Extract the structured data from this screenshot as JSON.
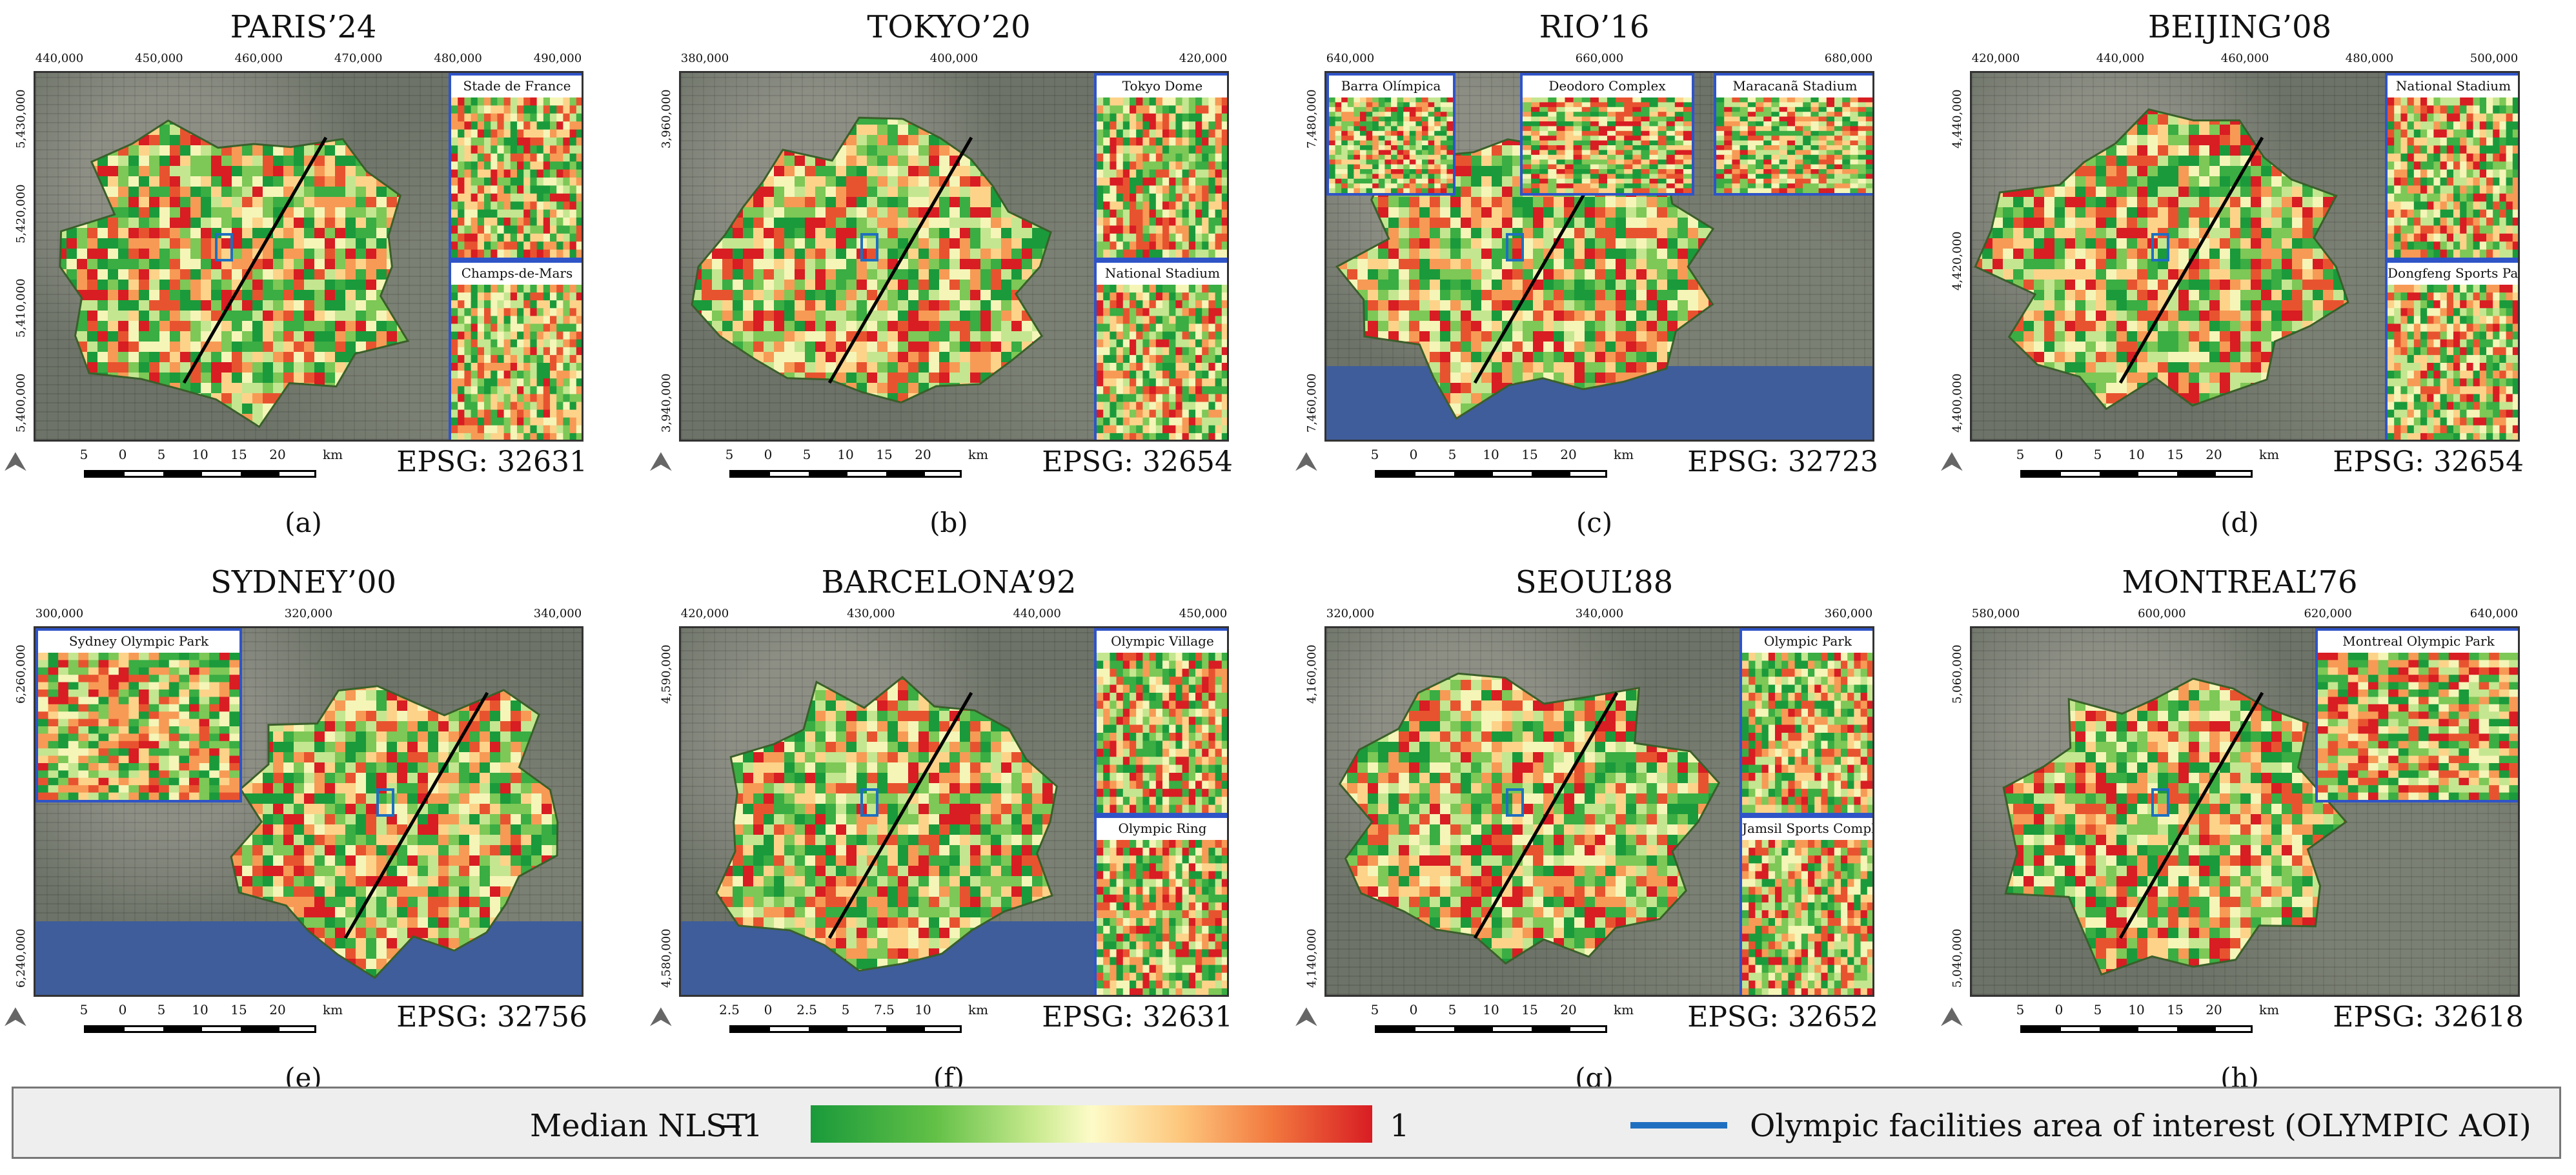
{
  "panels": [
    {
      "title": "PARIS’24",
      "sub": "(a)",
      "epsg": "EPSG: 32631",
      "top_ticks": [
        "440,000",
        "450,000",
        "460,000",
        "470,000",
        "480,000",
        "490,000"
      ],
      "left_ticks": [
        "5,430,000",
        "5,420,000",
        "5,410,000",
        "5,400,000"
      ],
      "scale": [
        "5",
        "0",
        "5",
        "10",
        "15",
        "20",
        "km"
      ],
      "insets": [
        "Stade de France",
        "Champs-de-Mars"
      ]
    },
    {
      "title": "TOKYO’20",
      "sub": "(b)",
      "epsg": "EPSG: 32654",
      "top_ticks": [
        "380,000",
        "400,000",
        "420,000"
      ],
      "left_ticks": [
        "3,960,000",
        "3,940,000"
      ],
      "scale": [
        "5",
        "0",
        "5",
        "10",
        "15",
        "20",
        "km"
      ],
      "insets": [
        "Tokyo Dome",
        "National Stadium"
      ]
    },
    {
      "title": "RIO’16",
      "sub": "(c)",
      "epsg": "EPSG: 32723",
      "top_ticks": [
        "640,000",
        "660,000",
        "680,000"
      ],
      "left_ticks": [
        "7,480,000",
        "7,460,000"
      ],
      "scale": [
        "5",
        "0",
        "5",
        "10",
        "15",
        "20",
        "km"
      ],
      "insets": [
        "Barra Olímpica",
        "Deodoro Complex",
        "Maracanã Stadium"
      ]
    },
    {
      "title": "BEIJING’08",
      "sub": "(d)",
      "epsg": "EPSG: 32654",
      "top_ticks": [
        "420,000",
        "440,000",
        "460,000",
        "480,000",
        "500,000"
      ],
      "left_ticks": [
        "4,440,000",
        "4,420,000",
        "4,400,000"
      ],
      "scale": [
        "5",
        "0",
        "5",
        "10",
        "15",
        "20",
        "km"
      ],
      "insets": [
        "National Stadium",
        "Dongfeng Sports Park"
      ]
    },
    {
      "title": "SYDNEY’00",
      "sub": "(e)",
      "epsg": "EPSG: 32756",
      "top_ticks": [
        "300,000",
        "320,000",
        "340,000"
      ],
      "left_ticks": [
        "6,260,000",
        "6,240,000"
      ],
      "scale": [
        "5",
        "0",
        "5",
        "10",
        "15",
        "20",
        "km"
      ],
      "insets": [
        "Sydney Olympic Park"
      ]
    },
    {
      "title": "BARCELONA’92",
      "sub": "(f)",
      "epsg": "EPSG: 32631",
      "top_ticks": [
        "420,000",
        "430,000",
        "440,000",
        "450,000"
      ],
      "left_ticks": [
        "4,590,000",
        "4,580,000"
      ],
      "scale": [
        "2.5",
        "0",
        "2.5",
        "5",
        "7.5",
        "10",
        "km"
      ],
      "insets": [
        "Olympic Village",
        "Olympic Ring"
      ]
    },
    {
      "title": "SEOUL’88",
      "sub": "(g)",
      "epsg": "EPSG: 32652",
      "top_ticks": [
        "320,000",
        "340,000",
        "360,000"
      ],
      "left_ticks": [
        "4,160,000",
        "4,140,000"
      ],
      "scale": [
        "5",
        "0",
        "5",
        "10",
        "15",
        "20",
        "km"
      ],
      "insets": [
        "Olympic Park",
        "Jamsil Sports Complex"
      ]
    },
    {
      "title": "MONTREAL’76",
      "sub": "(h)",
      "epsg": "EPSG: 32618",
      "top_ticks": [
        "580,000",
        "600,000",
        "620,000",
        "640,000"
      ],
      "left_ticks": [
        "5,060,000",
        "5,040,000"
      ],
      "scale": [
        "5",
        "0",
        "5",
        "10",
        "15",
        "20",
        "km"
      ],
      "insets": [
        "Montreal Olympic Park"
      ]
    }
  ],
  "legend": {
    "title": "Median NLST",
    "min": "−1",
    "max": "1",
    "aoi_label": "Olympic facilities area of interest (OLYMPIC AOI)",
    "colors": {
      "low": "#1a9a3b",
      "mid": "#fdfbc8",
      "high": "#d81d23",
      "aoi": "#1f6fc0"
    }
  },
  "icons": {
    "north_arrow": "north-arrow-icon"
  }
}
